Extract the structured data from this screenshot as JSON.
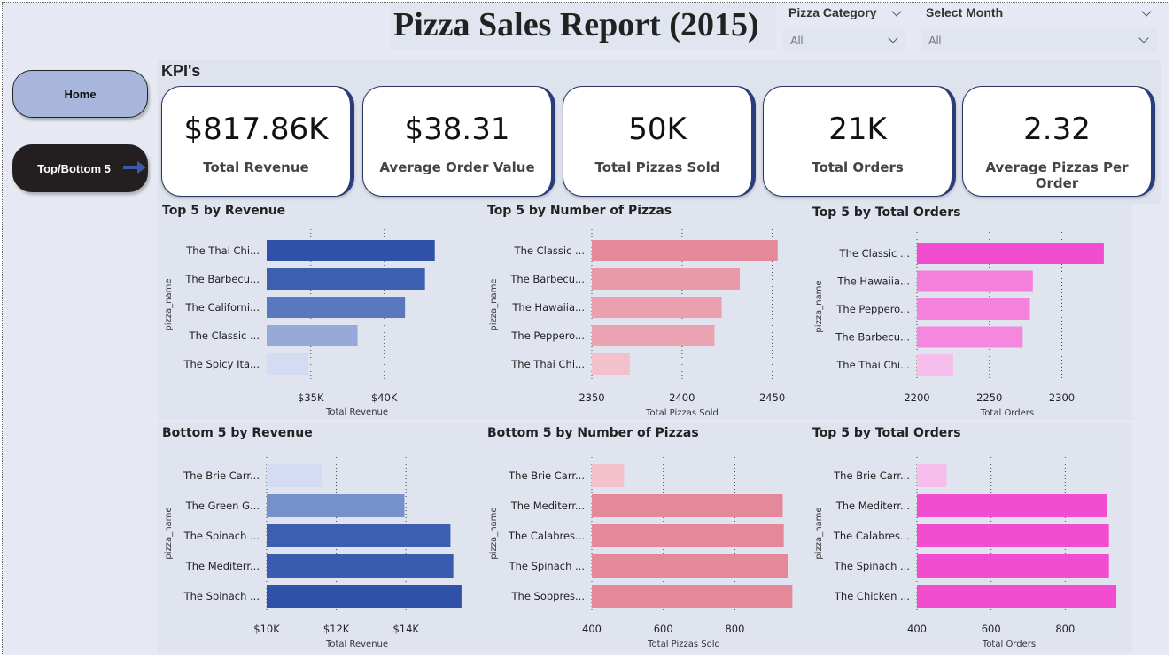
{
  "title": "Pizza Sales Report (2015)",
  "filters": [
    {
      "label": "Pizza Category",
      "value": "All"
    },
    {
      "label": "Select Month",
      "value": "All"
    }
  ],
  "nav": {
    "home": "Home",
    "topbottom": "Top/Bottom 5"
  },
  "kpi_heading": "KPI's",
  "kpis": [
    {
      "value": "$817.86K",
      "label": "Total Revenue"
    },
    {
      "value": "$38.31",
      "label": "Average Order Value"
    },
    {
      "value": "50K",
      "label": "Total Pizzas Sold"
    },
    {
      "value": "21K",
      "label": "Total Orders"
    },
    {
      "value": "2.32",
      "label": "Average Pizzas Per Order"
    }
  ],
  "chart_data": [
    {
      "type": "bar",
      "title": "Top 5 by Revenue",
      "ylabel": "pizza_name",
      "xlabel": "Total Revenue",
      "categories": [
        "The Thai Chi...",
        "The Barbecu...",
        "The Californi...",
        "The Classic ...",
        "The Spicy Ita..."
      ],
      "values": [
        43434,
        42768,
        41410,
        38180,
        34831
      ],
      "xlim": [
        32000,
        45500
      ],
      "ticks": [
        35000,
        40000
      ],
      "tick_labels": [
        "$35K",
        "$40K"
      ],
      "colors": [
        "#2f52a8",
        "#3d5fb0",
        "#5a78be",
        "#97a9d8",
        "#d3dcf2"
      ]
    },
    {
      "type": "bar",
      "title": "Top 5 by Number of Pizzas",
      "ylabel": "pizza_name",
      "xlabel": "Total Pizzas Sold",
      "categories": [
        "The Classic ...",
        "The Barbecu...",
        "The Hawaiia...",
        "The Peppero...",
        "The Thai Chi..."
      ],
      "values": [
        2453,
        2432,
        2422,
        2418,
        2371
      ],
      "xlim": [
        2350,
        2460
      ],
      "ticks": [
        2350,
        2400,
        2450
      ],
      "tick_labels": [
        "2350",
        "2400",
        "2450"
      ],
      "colors": [
        "#e4889a",
        "#e99aa9",
        "#eaa0ad",
        "#eaa3b0",
        "#f2c1cc"
      ]
    },
    {
      "type": "bar",
      "title": "Top 5 by Total Orders",
      "ylabel": "pizza_name",
      "xlabel": "Total Orders",
      "categories": [
        "The Classic ...",
        "The Hawaiia...",
        "The Peppero...",
        "The Barbecu...",
        "The Thai Chi..."
      ],
      "values": [
        2329,
        2280,
        2278,
        2273,
        2225
      ],
      "xlim": [
        2200,
        2337
      ],
      "ticks": [
        2200,
        2250,
        2300
      ],
      "tick_labels": [
        "2200",
        "2250",
        "2300"
      ],
      "colors": [
        "#f24dcf",
        "#f47fdc",
        "#f582dd",
        "#f587de",
        "#f7bdec"
      ]
    },
    {
      "type": "bar",
      "title": "Bottom 5 by Revenue",
      "ylabel": "pizza_name",
      "xlabel": "Total Revenue",
      "categories": [
        "The Brie Carr...",
        "The Green G...",
        "The Spinach ...",
        "The Mediterr...",
        "The Spinach ..."
      ],
      "values": [
        11588,
        13956,
        15278,
        15361,
        15596
      ],
      "xlim": [
        10000,
        15700
      ],
      "ticks": [
        10000,
        12000,
        14000
      ],
      "tick_labels": [
        "$10K",
        "$12K",
        "$14K"
      ],
      "colors": [
        "#d3dcf2",
        "#7690cc",
        "#3d5fb0",
        "#3a5caf",
        "#2f52a8"
      ]
    },
    {
      "type": "bar",
      "title": "Bottom 5 by Number of Pizzas",
      "ylabel": "pizza_name",
      "xlabel": "Total Pizzas Sold",
      "categories": [
        "The Brie Carr...",
        "The Mediterr...",
        "The Calabres...",
        "The Spinach ...",
        "The Soppres..."
      ],
      "values": [
        490,
        934,
        937,
        950,
        961
      ],
      "xlim": [
        400,
        965
      ],
      "ticks": [
        400,
        600,
        800
      ],
      "tick_labels": [
        "400",
        "600",
        "800"
      ],
      "colors": [
        "#f2c1cc",
        "#e4889a",
        "#e4889a",
        "#e4889a",
        "#e4889a"
      ]
    },
    {
      "type": "bar",
      "title": "Top 5 by Total Orders",
      "ylabel": "pizza_name",
      "xlabel": "Total Orders",
      "categories": [
        "The Brie Carr...",
        "The Mediterr...",
        "The Calabres...",
        "The Spinach ...",
        "The Chicken ..."
      ],
      "values": [
        480,
        912,
        918,
        918,
        938
      ],
      "xlim": [
        400,
        945
      ],
      "ticks": [
        400,
        600,
        800
      ],
      "tick_labels": [
        "400",
        "600",
        "800"
      ],
      "colors": [
        "#f7bdec",
        "#f24dcf",
        "#f24dcf",
        "#f24dcf",
        "#f24dcf"
      ]
    }
  ]
}
